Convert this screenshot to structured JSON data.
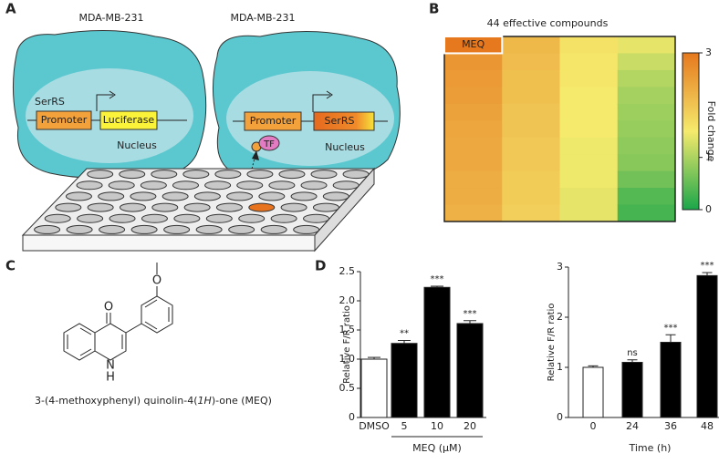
{
  "panel_labels": [
    "A",
    "B",
    "C",
    "D"
  ],
  "panel_a": {
    "cells": [
      {
        "title": "MDA-MB-231",
        "gene": "SerRS",
        "promoter": "Promoter",
        "reporter": "Luciferase",
        "compartment": "Nucleus"
      },
      {
        "title": "MDA-MB-231",
        "factor": "TF",
        "promoter": "Promoter",
        "reporter": "SerRS",
        "compartment": "Nucleus"
      }
    ]
  },
  "panel_b": {
    "type": "heatmap",
    "title": "44 effective compounds",
    "highlight": "MEQ",
    "colorbar_label": "Fold change",
    "clim": [
      0,
      3
    ],
    "cticks": [
      0,
      1,
      3
    ],
    "colormap": [
      "#1aa64a",
      "#f5ea6c",
      "#e6781e"
    ],
    "columns": [
      [
        2.7,
        2.6,
        2.55,
        2.5,
        2.45,
        2.4,
        2.35,
        2.35,
        2.3,
        2.3,
        2.25
      ],
      [
        2.15,
        2.1,
        2.05,
        2.05,
        2.0,
        2.0,
        1.95,
        1.95,
        1.9,
        1.9,
        1.85
      ],
      [
        1.6,
        1.55,
        1.55,
        1.5,
        1.5,
        1.5,
        1.45,
        1.45,
        1.45,
        1.4,
        1.4
      ],
      [
        1.4,
        1.2,
        1.05,
        0.95,
        0.9,
        0.85,
        0.8,
        0.75,
        0.6,
        0.4,
        0.3
      ]
    ]
  },
  "panel_c": {
    "atoms": [
      "O",
      "O",
      "N",
      "H"
    ],
    "name": [
      "3-(4-methoxyphenyl) quinolin-4(",
      "1H",
      ")-one (MEQ)"
    ]
  },
  "panel_d": [
    {
      "type": "bar",
      "ylabel": "Relative F/R ratio",
      "categories": [
        "DMSO",
        "5",
        "10",
        "20"
      ],
      "group_label": "MEQ (μM)",
      "values": [
        1.0,
        1.27,
        2.23,
        1.61
      ],
      "errors": [
        0.03,
        0.05,
        0.02,
        0.05
      ],
      "significance": [
        null,
        "**",
        "***",
        "***"
      ],
      "colors": [
        "#ffffff",
        "#000000",
        "#000000",
        "#000000"
      ],
      "ylim": [
        0,
        2.5
      ],
      "yticks": [
        0,
        0.5,
        {
          "value": 1,
          "label": "1.0"
        },
        1.5,
        {
          "value": 2,
          "label": "2.0"
        },
        2.5
      ]
    },
    {
      "type": "bar",
      "ylabel": "Relative F/R ratio",
      "categories": [
        "0",
        "24",
        "36",
        "48"
      ],
      "xlabel": "Time (h)",
      "values": [
        1.0,
        1.1,
        1.5,
        2.83
      ],
      "errors": [
        0.03,
        0.05,
        0.15,
        0.06
      ],
      "significance": [
        null,
        "ns",
        "***",
        "***"
      ],
      "colors": [
        "#ffffff",
        "#000000",
        "#000000",
        "#000000"
      ],
      "ylim": [
        0,
        3
      ],
      "yticks": [
        0,
        1,
        2,
        3
      ]
    }
  ]
}
